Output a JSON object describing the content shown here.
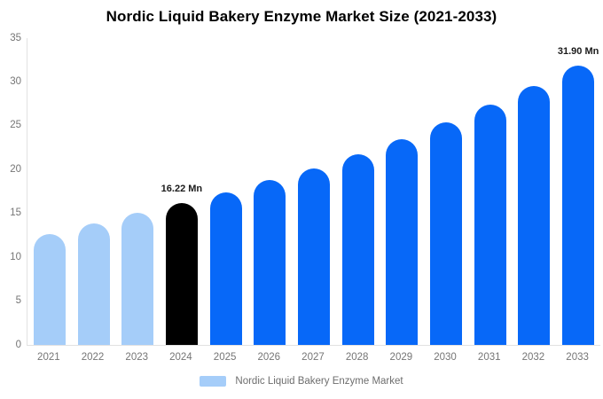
{
  "chart_data": {
    "type": "bar",
    "title": "Nordic Liquid Bakery Enzyme Market Size (2021-2033)",
    "categories": [
      "2021",
      "2022",
      "2023",
      "2024",
      "2025",
      "2026",
      "2027",
      "2028",
      "2029",
      "2030",
      "2031",
      "2032",
      "2033"
    ],
    "values": [
      12.7,
      13.85,
      15.05,
      16.22,
      17.45,
      18.8,
      20.15,
      21.8,
      23.5,
      25.4,
      27.4,
      29.5,
      31.9
    ],
    "point_labels": [
      "",
      "",
      "",
      "16.22 Mn",
      "",
      "",
      "",
      "",
      "",
      "",
      "",
      "",
      "31.90 Mn"
    ],
    "point_roles": [
      "historical",
      "historical",
      "historical",
      "current",
      "forecast",
      "forecast",
      "forecast",
      "forecast",
      "forecast",
      "forecast",
      "forecast",
      "forecast",
      "forecast"
    ],
    "palette": {
      "historical": "#A5CDF9",
      "current": "#000000",
      "forecast": "#0768F8"
    },
    "xlabel": "",
    "ylabel": "",
    "ylim": [
      0,
      35
    ],
    "yticks": [
      0,
      5,
      10,
      15,
      20,
      25,
      30,
      35
    ],
    "grid": false,
    "legend_position": "bottom",
    "legend": [
      {
        "label": "Nordic Liquid Bakery Enzyme Market",
        "swatch_color": "#A5CDF9"
      }
    ]
  },
  "colors": {
    "background": "#FFFFFF",
    "axis_line": "#E2E2E2",
    "tick_text": "#757575",
    "title_text": "#000000",
    "data_label_text": "#1A1A1A",
    "legend_text": "#6E6E6E"
  }
}
